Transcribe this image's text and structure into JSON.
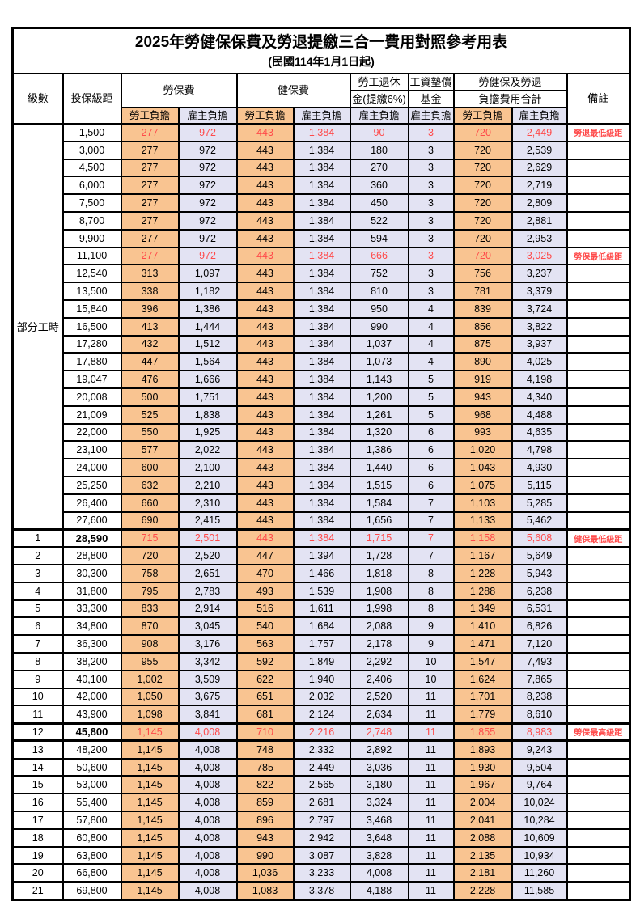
{
  "title": "2025年勞健保保費及勞退提繳三合一費用對照參考用表",
  "subtitle": "(民國114年1月1日起)",
  "colors": {
    "employee_fill_orange": "#F9C491",
    "employer_fill_lavender": "#E3E3F3",
    "highlight_red": "#FF4A4A",
    "grid_border": "#000000",
    "background": "#FFFFFF"
  },
  "table": {
    "header": {
      "level": "級數",
      "bracket": "投保級距",
      "labor_group": "勞保費",
      "health_group": "健保費",
      "pension_line1": "勞工退休",
      "pension_line2": "金(提繳6%)",
      "wage_fund_line1": "工資墊償",
      "wage_fund_line2": "基金",
      "total_line1": "勞健保及勞退",
      "total_line2": "負擔費用合計",
      "remark": "備註"
    },
    "subheader": {
      "employee": "勞工負擔",
      "employer": "雇主負擔"
    },
    "part_time": {
      "label": "部分工時",
      "row_span": 23
    },
    "columns": [
      {
        "key": "bracket",
        "fill": "white"
      },
      {
        "key": "labor_emp",
        "fill": "orange"
      },
      {
        "key": "labor_er",
        "fill": "lavender"
      },
      {
        "key": "health_emp",
        "fill": "orange"
      },
      {
        "key": "health_er",
        "fill": "lavender"
      },
      {
        "key": "pension_er",
        "fill": "lavender"
      },
      {
        "key": "wage_er",
        "fill": "lavender"
      },
      {
        "key": "total_emp",
        "fill": "orange"
      },
      {
        "key": "total_er",
        "fill": "lavender"
      },
      {
        "key": "remark",
        "fill": "remark"
      }
    ],
    "rows": [
      {
        "level": "",
        "bracket": "1,500",
        "labor_emp": "277",
        "labor_er": "972",
        "health_emp": "443",
        "health_er": "1,384",
        "pension_er": "90",
        "wage_er": "3",
        "total_emp": "720",
        "total_er": "2,449",
        "remark": "勞退最低級距",
        "highlight": true,
        "key": false
      },
      {
        "level": "",
        "bracket": "3,000",
        "labor_emp": "277",
        "labor_er": "972",
        "health_emp": "443",
        "health_er": "1,384",
        "pension_er": "180",
        "wage_er": "3",
        "total_emp": "720",
        "total_er": "2,539",
        "remark": "",
        "highlight": false,
        "key": false
      },
      {
        "level": "",
        "bracket": "4,500",
        "labor_emp": "277",
        "labor_er": "972",
        "health_emp": "443",
        "health_er": "1,384",
        "pension_er": "270",
        "wage_er": "3",
        "total_emp": "720",
        "total_er": "2,629",
        "remark": "",
        "highlight": false,
        "key": false
      },
      {
        "level": "",
        "bracket": "6,000",
        "labor_emp": "277",
        "labor_er": "972",
        "health_emp": "443",
        "health_er": "1,384",
        "pension_er": "360",
        "wage_er": "3",
        "total_emp": "720",
        "total_er": "2,719",
        "remark": "",
        "highlight": false,
        "key": false
      },
      {
        "level": "",
        "bracket": "7,500",
        "labor_emp": "277",
        "labor_er": "972",
        "health_emp": "443",
        "health_er": "1,384",
        "pension_er": "450",
        "wage_er": "3",
        "total_emp": "720",
        "total_er": "2,809",
        "remark": "",
        "highlight": false,
        "key": false
      },
      {
        "level": "",
        "bracket": "8,700",
        "labor_emp": "277",
        "labor_er": "972",
        "health_emp": "443",
        "health_er": "1,384",
        "pension_er": "522",
        "wage_er": "3",
        "total_emp": "720",
        "total_er": "2,881",
        "remark": "",
        "highlight": false,
        "key": false
      },
      {
        "level": "",
        "bracket": "9,900",
        "labor_emp": "277",
        "labor_er": "972",
        "health_emp": "443",
        "health_er": "1,384",
        "pension_er": "594",
        "wage_er": "3",
        "total_emp": "720",
        "total_er": "2,953",
        "remark": "",
        "highlight": false,
        "key": false
      },
      {
        "level": "",
        "bracket": "11,100",
        "labor_emp": "277",
        "labor_er": "972",
        "health_emp": "443",
        "health_er": "1,384",
        "pension_er": "666",
        "wage_er": "3",
        "total_emp": "720",
        "total_er": "3,025",
        "remark": "勞保最低級距",
        "highlight": true,
        "key": false
      },
      {
        "level": "",
        "bracket": "12,540",
        "labor_emp": "313",
        "labor_er": "1,097",
        "health_emp": "443",
        "health_er": "1,384",
        "pension_er": "752",
        "wage_er": "3",
        "total_emp": "756",
        "total_er": "3,237",
        "remark": "",
        "highlight": false,
        "key": false
      },
      {
        "level": "",
        "bracket": "13,500",
        "labor_emp": "338",
        "labor_er": "1,182",
        "health_emp": "443",
        "health_er": "1,384",
        "pension_er": "810",
        "wage_er": "3",
        "total_emp": "781",
        "total_er": "3,379",
        "remark": "",
        "highlight": false,
        "key": false
      },
      {
        "level": "",
        "bracket": "15,840",
        "labor_emp": "396",
        "labor_er": "1,386",
        "health_emp": "443",
        "health_er": "1,384",
        "pension_er": "950",
        "wage_er": "4",
        "total_emp": "839",
        "total_er": "3,724",
        "remark": "",
        "highlight": false,
        "key": false
      },
      {
        "level": "",
        "bracket": "16,500",
        "labor_emp": "413",
        "labor_er": "1,444",
        "health_emp": "443",
        "health_er": "1,384",
        "pension_er": "990",
        "wage_er": "4",
        "total_emp": "856",
        "total_er": "3,822",
        "remark": "",
        "highlight": false,
        "key": false
      },
      {
        "level": "",
        "bracket": "17,280",
        "labor_emp": "432",
        "labor_er": "1,512",
        "health_emp": "443",
        "health_er": "1,384",
        "pension_er": "1,037",
        "wage_er": "4",
        "total_emp": "875",
        "total_er": "3,937",
        "remark": "",
        "highlight": false,
        "key": false
      },
      {
        "level": "",
        "bracket": "17,880",
        "labor_emp": "447",
        "labor_er": "1,564",
        "health_emp": "443",
        "health_er": "1,384",
        "pension_er": "1,073",
        "wage_er": "4",
        "total_emp": "890",
        "total_er": "4,025",
        "remark": "",
        "highlight": false,
        "key": false
      },
      {
        "level": "",
        "bracket": "19,047",
        "labor_emp": "476",
        "labor_er": "1,666",
        "health_emp": "443",
        "health_er": "1,384",
        "pension_er": "1,143",
        "wage_er": "5",
        "total_emp": "919",
        "total_er": "4,198",
        "remark": "",
        "highlight": false,
        "key": false
      },
      {
        "level": "",
        "bracket": "20,008",
        "labor_emp": "500",
        "labor_er": "1,751",
        "health_emp": "443",
        "health_er": "1,384",
        "pension_er": "1,200",
        "wage_er": "5",
        "total_emp": "943",
        "total_er": "4,340",
        "remark": "",
        "highlight": false,
        "key": false
      },
      {
        "level": "",
        "bracket": "21,009",
        "labor_emp": "525",
        "labor_er": "1,838",
        "health_emp": "443",
        "health_er": "1,384",
        "pension_er": "1,261",
        "wage_er": "5",
        "total_emp": "968",
        "total_er": "4,488",
        "remark": "",
        "highlight": false,
        "key": false
      },
      {
        "level": "",
        "bracket": "22,000",
        "labor_emp": "550",
        "labor_er": "1,925",
        "health_emp": "443",
        "health_er": "1,384",
        "pension_er": "1,320",
        "wage_er": "6",
        "total_emp": "993",
        "total_er": "4,635",
        "remark": "",
        "highlight": false,
        "key": false
      },
      {
        "level": "",
        "bracket": "23,100",
        "labor_emp": "577",
        "labor_er": "2,022",
        "health_emp": "443",
        "health_er": "1,384",
        "pension_er": "1,386",
        "wage_er": "6",
        "total_emp": "1,020",
        "total_er": "4,798",
        "remark": "",
        "highlight": false,
        "key": false
      },
      {
        "level": "",
        "bracket": "24,000",
        "labor_emp": "600",
        "labor_er": "2,100",
        "health_emp": "443",
        "health_er": "1,384",
        "pension_er": "1,440",
        "wage_er": "6",
        "total_emp": "1,043",
        "total_er": "4,930",
        "remark": "",
        "highlight": false,
        "key": false
      },
      {
        "level": "",
        "bracket": "25,250",
        "labor_emp": "632",
        "labor_er": "2,210",
        "health_emp": "443",
        "health_er": "1,384",
        "pension_er": "1,515",
        "wage_er": "6",
        "total_emp": "1,075",
        "total_er": "5,115",
        "remark": "",
        "highlight": false,
        "key": false
      },
      {
        "level": "",
        "bracket": "26,400",
        "labor_emp": "660",
        "labor_er": "2,310",
        "health_emp": "443",
        "health_er": "1,384",
        "pension_er": "1,584",
        "wage_er": "7",
        "total_emp": "1,103",
        "total_er": "5,285",
        "remark": "",
        "highlight": false,
        "key": false
      },
      {
        "level": "",
        "bracket": "27,600",
        "labor_emp": "690",
        "labor_er": "2,415",
        "health_emp": "443",
        "health_er": "1,384",
        "pension_er": "1,656",
        "wage_er": "7",
        "total_emp": "1,133",
        "total_er": "5,462",
        "remark": "",
        "highlight": false,
        "key": false
      },
      {
        "level": "1",
        "bracket": "28,590",
        "labor_emp": "715",
        "labor_er": "2,501",
        "health_emp": "443",
        "health_er": "1,384",
        "pension_er": "1,715",
        "wage_er": "7",
        "total_emp": "1,158",
        "total_er": "5,608",
        "remark": "健保最低級距",
        "highlight": true,
        "key": true
      },
      {
        "level": "2",
        "bracket": "28,800",
        "labor_emp": "720",
        "labor_er": "2,520",
        "health_emp": "447",
        "health_er": "1,394",
        "pension_er": "1,728",
        "wage_er": "7",
        "total_emp": "1,167",
        "total_er": "5,649",
        "remark": "",
        "highlight": false,
        "key": false
      },
      {
        "level": "3",
        "bracket": "30,300",
        "labor_emp": "758",
        "labor_er": "2,651",
        "health_emp": "470",
        "health_er": "1,466",
        "pension_er": "1,818",
        "wage_er": "8",
        "total_emp": "1,228",
        "total_er": "5,943",
        "remark": "",
        "highlight": false,
        "key": false
      },
      {
        "level": "4",
        "bracket": "31,800",
        "labor_emp": "795",
        "labor_er": "2,783",
        "health_emp": "493",
        "health_er": "1,539",
        "pension_er": "1,908",
        "wage_er": "8",
        "total_emp": "1,288",
        "total_er": "6,238",
        "remark": "",
        "highlight": false,
        "key": false
      },
      {
        "level": "5",
        "bracket": "33,300",
        "labor_emp": "833",
        "labor_er": "2,914",
        "health_emp": "516",
        "health_er": "1,611",
        "pension_er": "1,998",
        "wage_er": "8",
        "total_emp": "1,349",
        "total_er": "6,531",
        "remark": "",
        "highlight": false,
        "key": false
      },
      {
        "level": "6",
        "bracket": "34,800",
        "labor_emp": "870",
        "labor_er": "3,045",
        "health_emp": "540",
        "health_er": "1,684",
        "pension_er": "2,088",
        "wage_er": "9",
        "total_emp": "1,410",
        "total_er": "6,826",
        "remark": "",
        "highlight": false,
        "key": false
      },
      {
        "level": "7",
        "bracket": "36,300",
        "labor_emp": "908",
        "labor_er": "3,176",
        "health_emp": "563",
        "health_er": "1,757",
        "pension_er": "2,178",
        "wage_er": "9",
        "total_emp": "1,471",
        "total_er": "7,120",
        "remark": "",
        "highlight": false,
        "key": false
      },
      {
        "level": "8",
        "bracket": "38,200",
        "labor_emp": "955",
        "labor_er": "3,342",
        "health_emp": "592",
        "health_er": "1,849",
        "pension_er": "2,292",
        "wage_er": "10",
        "total_emp": "1,547",
        "total_er": "7,493",
        "remark": "",
        "highlight": false,
        "key": false
      },
      {
        "level": "9",
        "bracket": "40,100",
        "labor_emp": "1,002",
        "labor_er": "3,509",
        "health_emp": "622",
        "health_er": "1,940",
        "pension_er": "2,406",
        "wage_er": "10",
        "total_emp": "1,624",
        "total_er": "7,865",
        "remark": "",
        "highlight": false,
        "key": false
      },
      {
        "level": "10",
        "bracket": "42,000",
        "labor_emp": "1,050",
        "labor_er": "3,675",
        "health_emp": "651",
        "health_er": "2,032",
        "pension_er": "2,520",
        "wage_er": "11",
        "total_emp": "1,701",
        "total_er": "8,238",
        "remark": "",
        "highlight": false,
        "key": false
      },
      {
        "level": "11",
        "bracket": "43,900",
        "labor_emp": "1,098",
        "labor_er": "3,841",
        "health_emp": "681",
        "health_er": "2,124",
        "pension_er": "2,634",
        "wage_er": "11",
        "total_emp": "1,779",
        "total_er": "8,610",
        "remark": "",
        "highlight": false,
        "key": false
      },
      {
        "level": "12",
        "bracket": "45,800",
        "labor_emp": "1,145",
        "labor_er": "4,008",
        "health_emp": "710",
        "health_er": "2,216",
        "pension_er": "2,748",
        "wage_er": "11",
        "total_emp": "1,855",
        "total_er": "8,983",
        "remark": "勞保最高級距",
        "highlight": true,
        "key": true
      },
      {
        "level": "13",
        "bracket": "48,200",
        "labor_emp": "1,145",
        "labor_er": "4,008",
        "health_emp": "748",
        "health_er": "2,332",
        "pension_er": "2,892",
        "wage_er": "11",
        "total_emp": "1,893",
        "total_er": "9,243",
        "remark": "",
        "highlight": false,
        "key": false
      },
      {
        "level": "14",
        "bracket": "50,600",
        "labor_emp": "1,145",
        "labor_er": "4,008",
        "health_emp": "785",
        "health_er": "2,449",
        "pension_er": "3,036",
        "wage_er": "11",
        "total_emp": "1,930",
        "total_er": "9,504",
        "remark": "",
        "highlight": false,
        "key": false
      },
      {
        "level": "15",
        "bracket": "53,000",
        "labor_emp": "1,145",
        "labor_er": "4,008",
        "health_emp": "822",
        "health_er": "2,565",
        "pension_er": "3,180",
        "wage_er": "11",
        "total_emp": "1,967",
        "total_er": "9,764",
        "remark": "",
        "highlight": false,
        "key": false
      },
      {
        "level": "16",
        "bracket": "55,400",
        "labor_emp": "1,145",
        "labor_er": "4,008",
        "health_emp": "859",
        "health_er": "2,681",
        "pension_er": "3,324",
        "wage_er": "11",
        "total_emp": "2,004",
        "total_er": "10,024",
        "remark": "",
        "highlight": false,
        "key": false
      },
      {
        "level": "17",
        "bracket": "57,800",
        "labor_emp": "1,145",
        "labor_er": "4,008",
        "health_emp": "896",
        "health_er": "2,797",
        "pension_er": "3,468",
        "wage_er": "11",
        "total_emp": "2,041",
        "total_er": "10,284",
        "remark": "",
        "highlight": false,
        "key": false
      },
      {
        "level": "18",
        "bracket": "60,800",
        "labor_emp": "1,145",
        "labor_er": "4,008",
        "health_emp": "943",
        "health_er": "2,942",
        "pension_er": "3,648",
        "wage_er": "11",
        "total_emp": "2,088",
        "total_er": "10,609",
        "remark": "",
        "highlight": false,
        "key": false
      },
      {
        "level": "19",
        "bracket": "63,800",
        "labor_emp": "1,145",
        "labor_er": "4,008",
        "health_emp": "990",
        "health_er": "3,087",
        "pension_er": "3,828",
        "wage_er": "11",
        "total_emp": "2,135",
        "total_er": "10,934",
        "remark": "",
        "highlight": false,
        "key": false
      },
      {
        "level": "20",
        "bracket": "66,800",
        "labor_emp": "1,145",
        "labor_er": "4,008",
        "health_emp": "1,036",
        "health_er": "3,233",
        "pension_er": "4,008",
        "wage_er": "11",
        "total_emp": "2,181",
        "total_er": "11,260",
        "remark": "",
        "highlight": false,
        "key": false
      },
      {
        "level": "21",
        "bracket": "69,800",
        "labor_emp": "1,145",
        "labor_er": "4,008",
        "health_emp": "1,083",
        "health_er": "3,378",
        "pension_er": "4,188",
        "wage_er": "11",
        "total_emp": "2,228",
        "total_er": "11,585",
        "remark": "",
        "highlight": false,
        "key": false
      }
    ]
  }
}
